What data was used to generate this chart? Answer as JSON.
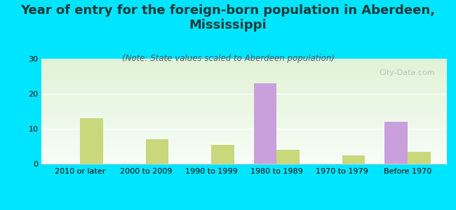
{
  "title": "Year of entry for the foreign-born population in Aberdeen,\nMississippi",
  "subtitle": "(Note: State values scaled to Aberdeen population)",
  "categories": [
    "2010 or later",
    "2000 to 2009",
    "1990 to 1999",
    "1980 to 1989",
    "1970 to 1979",
    "Before 1970"
  ],
  "aberdeen_values": [
    0,
    0,
    0,
    23,
    0,
    12
  ],
  "mississippi_values": [
    13,
    7,
    5.5,
    4,
    2.5,
    3.5
  ],
  "aberdeen_color": "#c9a0dc",
  "mississippi_color": "#c8d87a",
  "background_color": "#00e5ff",
  "ylim": [
    0,
    30
  ],
  "yticks": [
    0,
    10,
    20,
    30
  ],
  "bar_width": 0.35,
  "watermark": "City-Data.com",
  "title_fontsize": 13,
  "subtitle_fontsize": 8.5,
  "legend_fontsize": 10,
  "tick_fontsize": 8
}
